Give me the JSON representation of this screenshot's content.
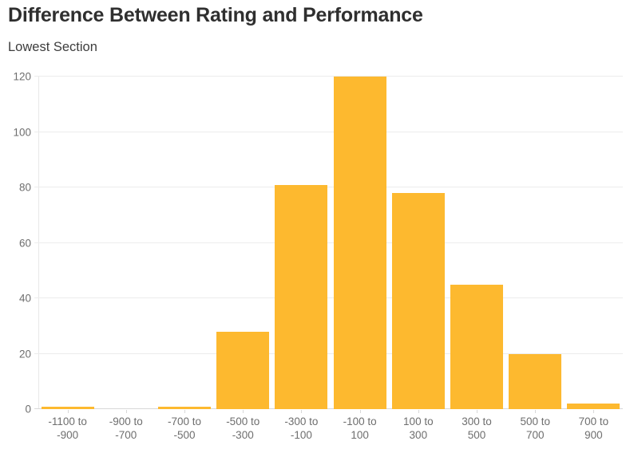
{
  "chart_data": {
    "type": "bar",
    "title": "Difference Between Rating and Performance",
    "subtitle": "Lowest Section",
    "categories": [
      "-1100 to -900",
      "-900 to -700",
      "-700 to -500",
      "-500 to -300",
      "-300 to -100",
      "-100 to 100",
      "100 to 300",
      "300 to 500",
      "500 to 700",
      "700 to 900"
    ],
    "values": [
      1,
      0,
      1,
      28,
      81,
      120,
      78,
      45,
      20,
      2
    ],
    "xlabel": "",
    "ylabel": "",
    "ylim": [
      0,
      120
    ],
    "yticks": [
      0,
      20,
      40,
      60,
      80,
      100,
      120
    ],
    "grid": "horizontal",
    "legend": "none",
    "colors": {
      "bar": "#fdb92f",
      "grid": "#ececec",
      "axis": "#d8d8d8",
      "y_axis_line": "#e9e9e9",
      "tick_label": "#6e6e6e",
      "title": "#2f2f2f",
      "subtitle": "#3d3d3d"
    }
  }
}
